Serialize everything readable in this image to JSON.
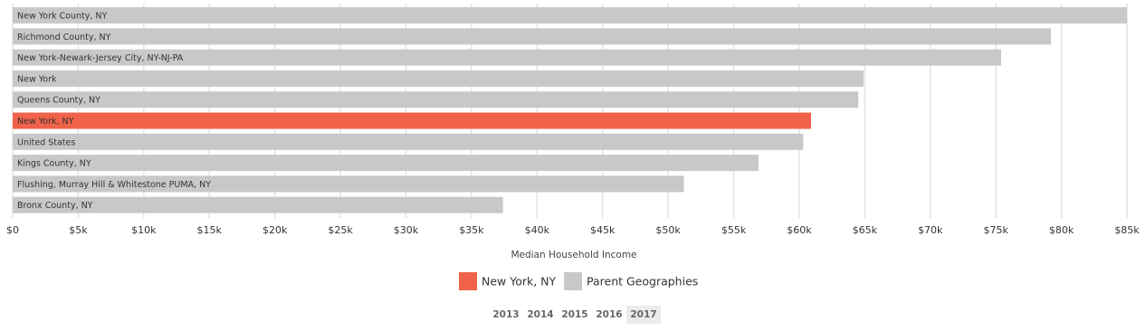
{
  "chart_data": {
    "type": "hbar",
    "x_label": "Median Household Income",
    "categories": [
      "New York County, NY",
      "Richmond County, NY",
      "New York-Newark-Jersey City, NY-NJ-PA",
      "New York",
      "Queens County, NY",
      "New York, NY",
      "United States",
      "Kings County, NY",
      "Flushing, Murray Hill & Whitestone PUMA, NY",
      "Bronx County, NY"
    ],
    "values": [
      85000,
      79200,
      75400,
      64900,
      64500,
      60900,
      60300,
      56900,
      51200,
      37400
    ],
    "colors": [
      "#c8c8ca",
      "#c8c8ca",
      "#c8c8ca",
      "#c8c8ca",
      "#c8c8ca",
      "#f0624a",
      "#c8c8ca",
      "#c8c8ca",
      "#c8c8ca",
      "#c8c8ca"
    ],
    "legend": [
      {
        "name": "New York, NY",
        "color": "#f0624a"
      },
      {
        "name": "Parent Geographies",
        "color": "#c8c8ca"
      }
    ],
    "xlim": [
      0,
      85000
    ],
    "xticks": [
      {
        "value": 0,
        "label": "$0"
      },
      {
        "value": 5000,
        "label": "$5k"
      },
      {
        "value": 10000,
        "label": "$10k"
      },
      {
        "value": 15000,
        "label": "$15k"
      },
      {
        "value": 20000,
        "label": "$20k"
      },
      {
        "value": 25000,
        "label": "$25k"
      },
      {
        "value": 30000,
        "label": "$30k"
      },
      {
        "value": 35000,
        "label": "$35k"
      },
      {
        "value": 40000,
        "label": "$40k"
      },
      {
        "value": 45000,
        "label": "$45k"
      },
      {
        "value": 50000,
        "label": "$50k"
      },
      {
        "value": 55000,
        "label": "$55k"
      },
      {
        "value": 60000,
        "label": "$60k"
      },
      {
        "value": 65000,
        "label": "$65k"
      },
      {
        "value": 70000,
        "label": "$70k"
      },
      {
        "value": 75000,
        "label": "$75k"
      },
      {
        "value": 80000,
        "label": "$80k"
      },
      {
        "value": 85000,
        "label": "$85k"
      }
    ],
    "grid": true
  },
  "year_selector": {
    "years": [
      "2013",
      "2014",
      "2015",
      "2016",
      "2017"
    ],
    "selected": 4
  }
}
